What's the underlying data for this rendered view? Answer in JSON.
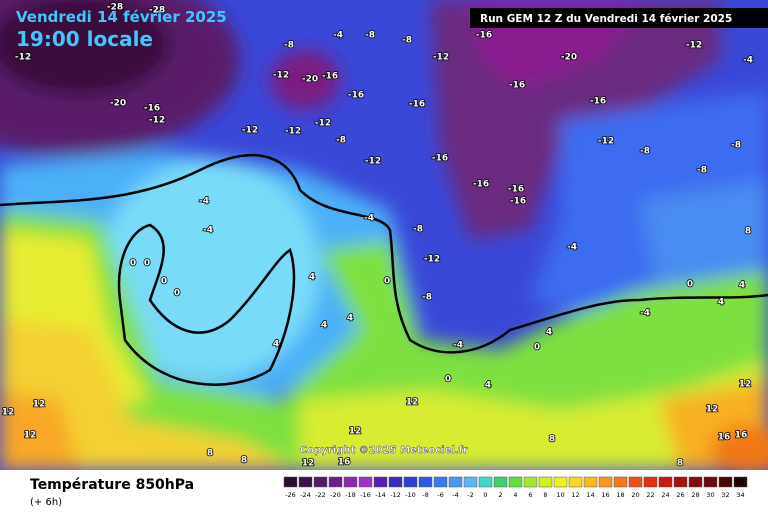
{
  "header": {
    "title": "Vendredi 14 février 2025",
    "time": "19:00 locale"
  },
  "run_banner": "Run GEM 12 Z du Vendredi 14 février 2025",
  "copyright": "Copyright ©2025 Meteociel.fr",
  "map_labels": [
    -28,
    -28,
    -12,
    -8,
    -4,
    -8,
    -8,
    -16,
    -20,
    -12,
    -4,
    -20,
    -16,
    -12,
    -20,
    -16,
    -12,
    -16,
    -12,
    -12,
    -12,
    -8,
    -16,
    -16,
    -16,
    -12,
    -8,
    -8,
    -8,
    -12,
    -16,
    -16,
    -16,
    -16,
    -4,
    -4,
    -4,
    -8,
    -12,
    -4,
    -8,
    -4,
    0,
    0,
    0,
    0,
    4,
    4,
    4,
    4,
    0,
    0,
    4,
    0,
    4,
    4,
    -4,
    -12,
    8,
    8,
    8,
    12,
    12,
    12,
    12,
    16,
    12,
    12,
    12,
    16,
    16,
    12,
    8,
    8,
    4,
    0
  ],
  "footer": {
    "title": "Température 850hPa",
    "subtitle": "(+ 6h)",
    "scale": [
      -26,
      -24,
      -22,
      -20,
      -18,
      -16,
      -14,
      -12,
      -10,
      -8,
      -6,
      -4,
      -2,
      0,
      2,
      4,
      6,
      8,
      10,
      12,
      14,
      16,
      18,
      20,
      22,
      24,
      26,
      28,
      30,
      32,
      34
    ],
    "colors": [
      "#2b0d2e",
      "#3d1248",
      "#551a66",
      "#6e1f87",
      "#8e27a8",
      "#a032c4",
      "#5a1fb2",
      "#3a2bc0",
      "#2e3fd8",
      "#2f5ae6",
      "#3a78f0",
      "#4a98f5",
      "#5ab6f7",
      "#40d8c8",
      "#40d070",
      "#60e040",
      "#a0e830",
      "#d0f020",
      "#f0f020",
      "#f8d820",
      "#f8b820",
      "#f89820",
      "#f87818",
      "#f05010",
      "#e03010",
      "#c81810",
      "#a81010",
      "#880810",
      "#680810",
      "#480808",
      "#200404"
    ]
  }
}
